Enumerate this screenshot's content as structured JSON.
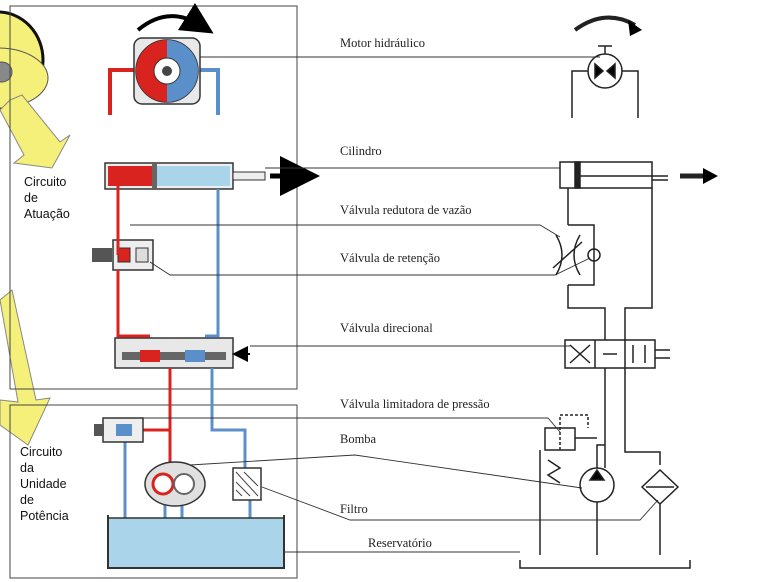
{
  "labels": {
    "motor": "Motor hidráulico",
    "cilindro": "Cilindro",
    "redutora": "Válvula redutora de vazão",
    "retencao": "Válvula de retenção",
    "direcional": "Válvula direcional",
    "limitadora": "Válvula limitadora de pressão",
    "bomba": "Bomba",
    "filtro": "Filtro",
    "reservatorio": "Reservatório"
  },
  "sections": {
    "atuacao": "Circuito\nde\nAtuação",
    "potencia": "Circuito\nda\nUnidade\nde\nPotência"
  },
  "colors": {
    "pressure_line": "#d8231f",
    "return_line": "#5b8fc9",
    "callout_yellow": "#f5f07a",
    "reservoir_fluid": "#a9d4ea"
  }
}
